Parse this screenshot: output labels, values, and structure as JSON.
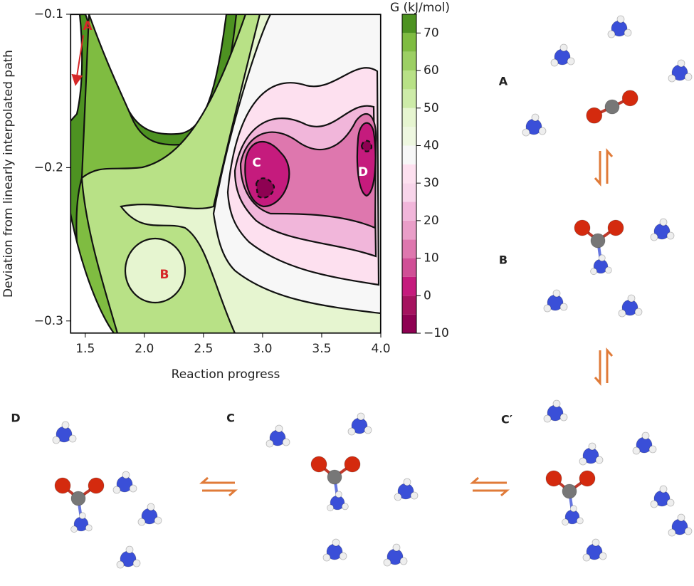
{
  "chart_data": {
    "type": "contour",
    "xlabel": "Reaction progress",
    "ylabel": "Deviation from linearly interpolated path",
    "xlim": [
      1.375,
      4.0
    ],
    "xticks": [
      1.5,
      {
        "value": 2,
        "label": "2.0"
      },
      2.5,
      {
        "value": 3,
        "label": "3.0"
      },
      3.5,
      {
        "value": 4,
        "label": "4.0"
      }
    ],
    "ylim": [
      -0.308,
      -0.1
    ],
    "yticks": [
      {
        "value": -0.1,
        "label": "−0.1"
      },
      {
        "value": -0.2,
        "label": "−0.2"
      },
      {
        "value": -0.3,
        "label": "−0.3"
      }
    ],
    "annotations": [
      {
        "text": "A",
        "x": 1.52,
        "y": -0.108,
        "color": "#d62728",
        "arrow_x": 1.42,
        "arrow_y": -0.145
      },
      {
        "text": "B",
        "x": 2.17,
        "y": -0.27,
        "color": "#d62728"
      },
      {
        "text": "C",
        "x": 2.95,
        "y": -0.197,
        "color": "#ffffff"
      },
      {
        "text": "D",
        "x": 3.85,
        "y": -0.203,
        "color": "#ffffff"
      }
    ],
    "colorbar": {
      "label": "G (kJ/mol)",
      "lim": [
        -10,
        75
      ],
      "ticks": [
        {
          "value": -10,
          "label": "−10"
        },
        0,
        10,
        20,
        30,
        40,
        50,
        60,
        70
      ],
      "levels": [
        -10,
        -5,
        0,
        5,
        10,
        15,
        20,
        25,
        30,
        35,
        40,
        45,
        50,
        55,
        60,
        65,
        70,
        75
      ],
      "colors": [
        "#8e0152",
        "#a5135f",
        "#c51b7d",
        "#d04f96",
        "#de77ae",
        "#e99ec8",
        "#f1b6da",
        "#f8d5ea",
        "#fde0ef",
        "#f7f7f7",
        "#eef7e0",
        "#e6f5d0",
        "#cdeba8",
        "#b8e186",
        "#9ccf63",
        "#7fbc41",
        "#4d9221"
      ]
    }
  },
  "panels": [
    {
      "label": "A"
    },
    {
      "label": "B"
    },
    {
      "label": "C′"
    },
    {
      "label": "D"
    },
    {
      "label": "C"
    }
  ]
}
